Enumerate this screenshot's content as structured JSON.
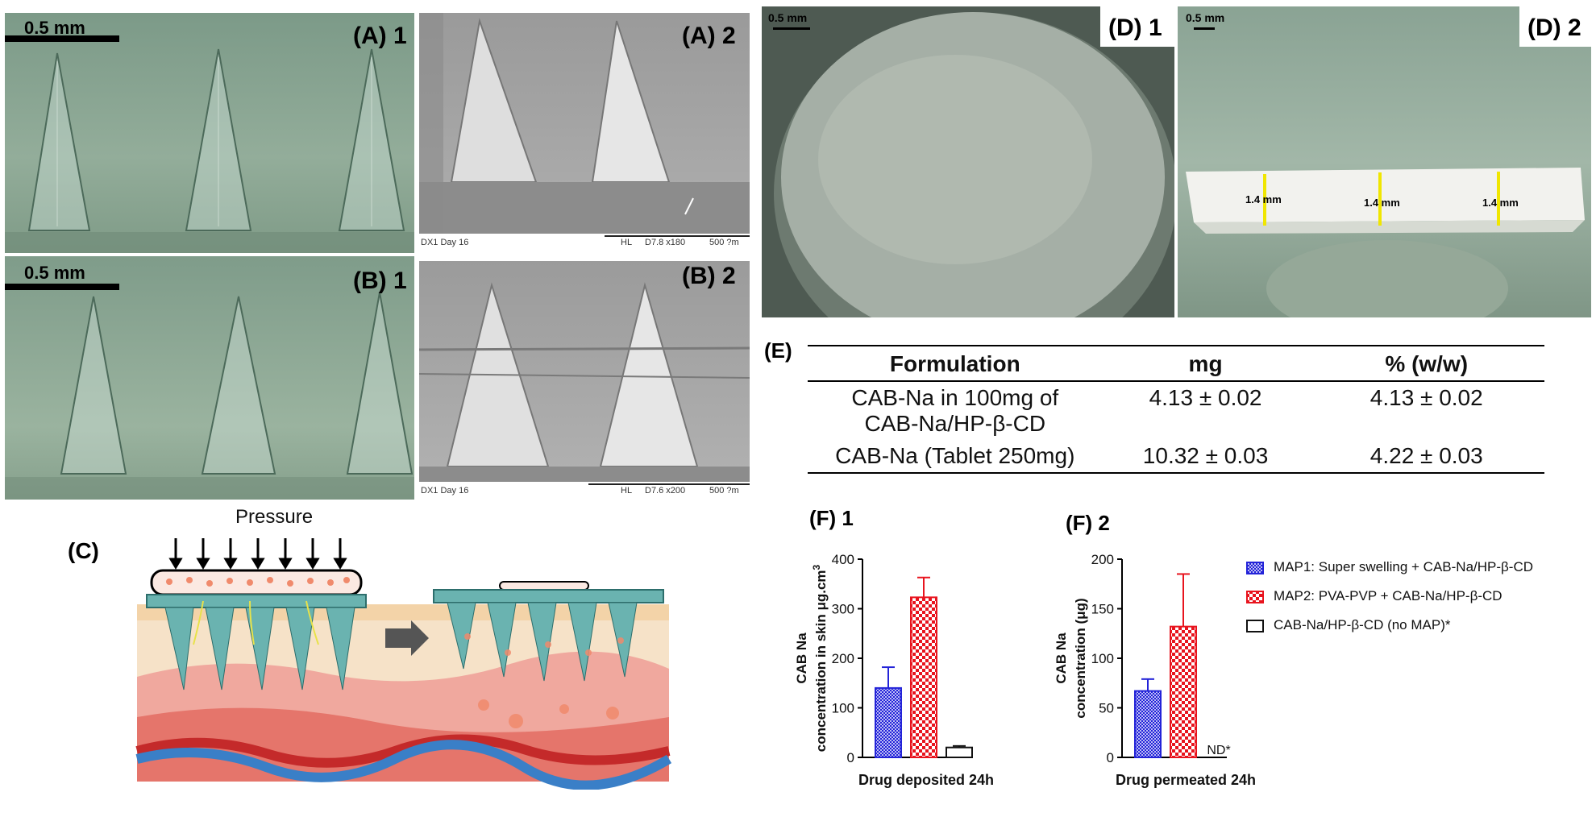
{
  "panels": {
    "a1": {
      "label": "(A) 1",
      "scale": "0.5 mm"
    },
    "a2": {
      "label": "(A) 2",
      "footer": {
        "left": "DX1 Day 16",
        "hl": "HL",
        "params": "D7.8  x180",
        "scale": "500 ?m"
      }
    },
    "b1": {
      "label": "(B) 1",
      "scale": "0.5 mm"
    },
    "b2": {
      "label": "(B) 2",
      "footer": {
        "left": "DX1 Day 16",
        "hl": "HL",
        "params": "D7.6  x200",
        "scale": "500 ?m"
      }
    },
    "c": {
      "label": "(C)",
      "pressure": "Pressure"
    },
    "d1": {
      "label": "(D) 1",
      "scale": "0.5 mm"
    },
    "d2": {
      "label": "(D) 2",
      "scale": "0.5 mm",
      "measure1": "1.4 mm",
      "measure2": "1.4 mm",
      "measure3": "1.4 mm"
    },
    "e": {
      "label": "(E)"
    },
    "f1": {
      "label": "(F) 1"
    },
    "f2": {
      "label": "(F) 2"
    }
  },
  "table": {
    "headers": [
      "Formulation",
      "mg",
      "% (w/w)"
    ],
    "rows": [
      {
        "formulation": "CAB-Na in 100mg of CAB-Na/HP-β-CD",
        "mg": "4.13 ± 0.02",
        "pct": "4.13 ± 0.02"
      },
      {
        "formulation": "CAB-Na (Tablet 250mg)",
        "mg": "10.32 ± 0.03",
        "pct": "4.22 ± 0.03"
      }
    ]
  },
  "colors": {
    "blue": "#2323d8",
    "red": "#e8141e",
    "black": "#111111"
  },
  "chart_data": [
    {
      "type": "bar",
      "title": "(F) 1",
      "ylabel_line1": "CAB Na",
      "ylabel_line2": "concentration in skin μg.cm",
      "ylabel_sup": "3",
      "xlabel": "Drug deposited 24h",
      "ylim": [
        0,
        400
      ],
      "yticks": [
        "0",
        "100",
        "200",
        "300",
        "400"
      ],
      "series": [
        {
          "name": "MAP1: Super swelling + CAB-Na/HP-β-CD",
          "value": 140,
          "error": 42
        },
        {
          "name": "MAP2: PVA-PVP + CAB-Na/HP-β-CD",
          "value": 323,
          "error": 40
        },
        {
          "name": "CAB-Na/HP-β-CD (no MAP)*",
          "value": 20,
          "error": 3
        }
      ]
    },
    {
      "type": "bar",
      "title": "(F) 2",
      "ylabel_line1": "CAB Na",
      "ylabel_line2": "concentration (μg)",
      "xlabel": "Drug permeated 24h",
      "ylim": [
        0,
        200
      ],
      "yticks": [
        "0",
        "50",
        "100",
        "150",
        "200"
      ],
      "series": [
        {
          "name": "MAP1: Super swelling + CAB-Na/HP-β-CD",
          "value": 67,
          "error": 12
        },
        {
          "name": "MAP2: PVA-PVP + CAB-Na/HP-β-CD",
          "value": 132,
          "error": 53
        },
        {
          "name": "CAB-Na/HP-β-CD (no MAP)*",
          "value": 0,
          "label": "ND*"
        }
      ]
    }
  ],
  "legend": [
    "MAP1: Super swelling + CAB-Na/HP-β-CD",
    "MAP2: PVA-PVP + CAB-Na/HP-β-CD",
    "CAB-Na/HP-β-CD (no MAP)*"
  ]
}
